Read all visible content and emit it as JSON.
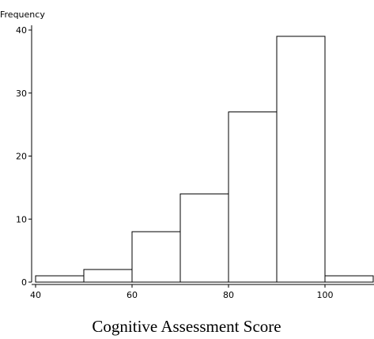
{
  "chart_data": {
    "type": "bar",
    "ylabel": "Frequency",
    "xlabel": "Cognitive Assessment Score",
    "bins": [
      {
        "start": 40,
        "end": 50,
        "value": 1
      },
      {
        "start": 50,
        "end": 60,
        "value": 2
      },
      {
        "start": 60,
        "end": 70,
        "value": 8
      },
      {
        "start": 70,
        "end": 80,
        "value": 14
      },
      {
        "start": 80,
        "end": 90,
        "value": 27
      },
      {
        "start": 90,
        "end": 100,
        "value": 39
      },
      {
        "start": 100,
        "end": 110,
        "value": 1
      }
    ],
    "xlim": [
      40,
      110
    ],
    "ylim": [
      0,
      40
    ],
    "xticks": [
      "40",
      "60",
      "80",
      "100"
    ],
    "yticks": [
      "0",
      "10",
      "20",
      "30",
      "40"
    ],
    "grid": false,
    "legend": "none"
  }
}
